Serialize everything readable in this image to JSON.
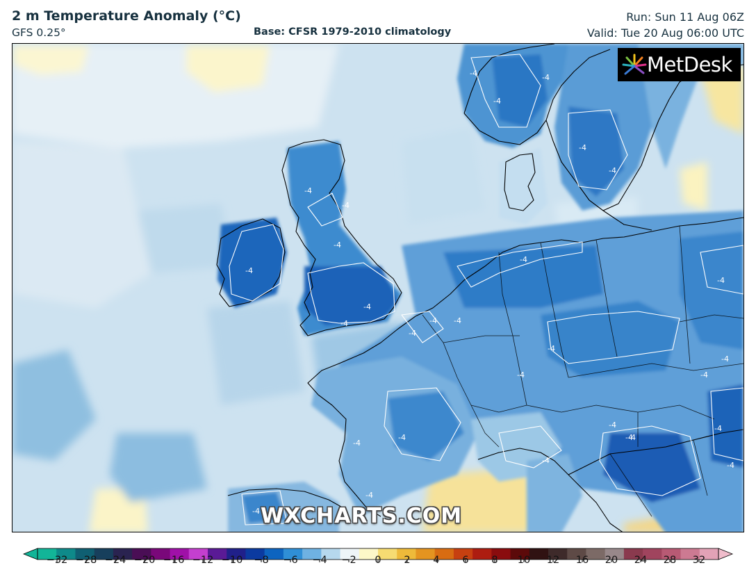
{
  "header": {
    "title": "2 m Temperature Anomaly (°C)",
    "model": "GFS 0.25°",
    "base": "Base: CFSR 1979-2010 climatology",
    "run": "Run: Sun 11 Aug 06Z",
    "valid": "Valid: Tue 20 Aug 06:00 UTC"
  },
  "map": {
    "region": "Europe",
    "contour_label": "-4",
    "logo_text": "MetDesk",
    "watermark": "WXCHARTS.COM"
  },
  "colorbar": {
    "ticks": [
      "−32",
      "−28",
      "−24",
      "−20",
      "−16",
      "−12",
      "−10",
      "−8",
      "−6",
      "−4",
      "−2",
      "0",
      "2",
      "4",
      "6",
      "8",
      "10",
      "12",
      "16",
      "20",
      "24",
      "28",
      "32"
    ],
    "colors": [
      "#12b598",
      "#0e8a8a",
      "#0f5f72",
      "#173f5c",
      "#2a2350",
      "#4a0e55",
      "#7a087a",
      "#a010a8",
      "#c43fcf",
      "#5a1a96",
      "#20208a",
      "#0b3aa0",
      "#0d64c0",
      "#2f8fd6",
      "#6fb2e2",
      "#b6d8ee",
      "#eef5f8",
      "#fdf8c8",
      "#f6dc72",
      "#eeba3a",
      "#e49420",
      "#d86c12",
      "#c74010",
      "#ad1d10",
      "#8a0c0e",
      "#5c0a0a",
      "#301212",
      "#3e2a2a",
      "#5e4a46",
      "#7c6a66",
      "#98888a",
      "#8a3a4e",
      "#a0445e",
      "#b85a74",
      "#cd7a92",
      "#e2a2b6"
    ]
  }
}
